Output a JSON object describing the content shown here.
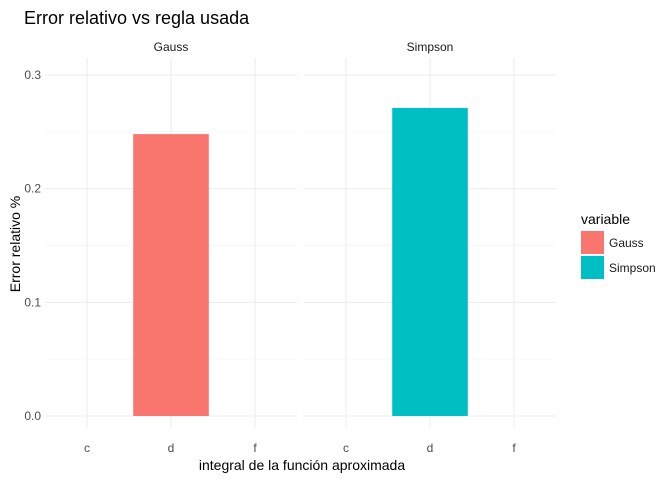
{
  "chart_data": {
    "type": "bar",
    "title": "Error relativo vs regla usada",
    "xlabel": "integral de la función aproximada",
    "ylabel": "Error relativo %",
    "ylim": [
      0,
      0.3
    ],
    "yticks": [
      "0.0",
      "0.1",
      "0.2",
      "0.3"
    ],
    "categories": [
      "c",
      "d",
      "f"
    ],
    "facets": [
      {
        "label": "Gauss",
        "series": "Gauss",
        "values": [
          null,
          0.248,
          null
        ]
      },
      {
        "label": "Simpson",
        "series": "Simpson",
        "values": [
          null,
          0.271,
          null
        ]
      }
    ],
    "legend": {
      "title": "variable",
      "position": "right",
      "items": [
        {
          "label": "Gauss",
          "color": "#F8766D"
        },
        {
          "label": "Simpson",
          "color": "#00BFC4"
        }
      ]
    },
    "grid": true
  }
}
